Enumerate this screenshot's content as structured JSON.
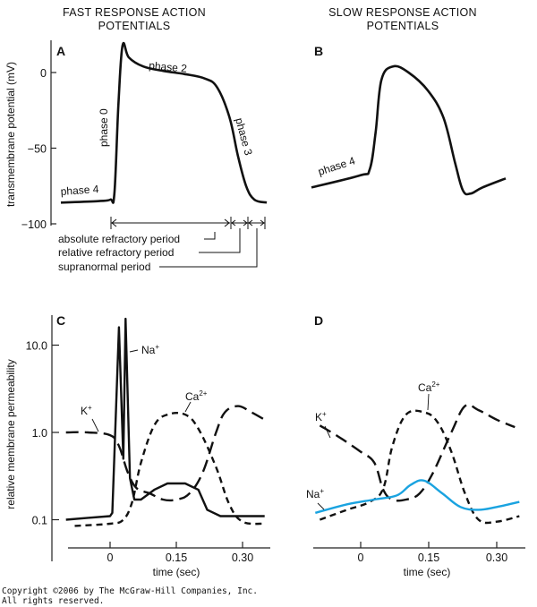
{
  "headers": {
    "fast_line1": "FAST RESPONSE ACTION",
    "fast_line2": "POTENTIALS",
    "slow_line1": "SLOW RESPONSE ACTION",
    "slow_line2": "POTENTIALS"
  },
  "copyright": {
    "line1": "Copyright ©2006 by The McGraw-Hill Companies, Inc.",
    "line2": "All rights reserved."
  },
  "chart_data": [
    {
      "panel": "A",
      "type": "line",
      "title": "Fast response action potential",
      "xlabel": "",
      "ylabel": "transmembrane potential (mV)",
      "ylim": [
        -100,
        20
      ],
      "yticks": [
        0,
        -50,
        -100
      ],
      "ytick_labels": [
        "0",
        "−50",
        "−100"
      ],
      "grid": false,
      "series": [
        {
          "name": "membrane potential",
          "style": "solid",
          "points": [
            [
              0,
              -86
            ],
            [
              0.18,
              -85
            ],
            [
              0.24,
              -84
            ],
            [
              0.26,
              -80
            ],
            [
              0.28,
              -20
            ],
            [
              0.3,
              18
            ],
            [
              0.33,
              10
            ],
            [
              0.4,
              4
            ],
            [
              0.5,
              1
            ],
            [
              0.6,
              -1
            ],
            [
              0.7,
              -4
            ],
            [
              0.76,
              -10
            ],
            [
              0.82,
              -30
            ],
            [
              0.86,
              -55
            ],
            [
              0.9,
              -75
            ],
            [
              0.94,
              -84
            ],
            [
              1.0,
              -86
            ]
          ]
        }
      ],
      "annotations": [
        "phase 0",
        "phase 2",
        "phase 3",
        "phase 4"
      ],
      "periods": {
        "absolute": "absolute refractory period",
        "relative": "relative refractory period",
        "supranormal": "supranormal period"
      }
    },
    {
      "panel": "B",
      "type": "line",
      "title": "Slow response action potential",
      "ylim": [
        -100,
        20
      ],
      "grid": false,
      "series": [
        {
          "name": "membrane potential",
          "style": "solid",
          "points": [
            [
              0,
              -76
            ],
            [
              0.25,
              -68
            ],
            [
              0.3,
              -64
            ],
            [
              0.33,
              -40
            ],
            [
              0.36,
              -5
            ],
            [
              0.42,
              4
            ],
            [
              0.5,
              0
            ],
            [
              0.6,
              -12
            ],
            [
              0.68,
              -30
            ],
            [
              0.74,
              -60
            ],
            [
              0.78,
              -78
            ],
            [
              0.82,
              -80
            ],
            [
              0.88,
              -76
            ],
            [
              1.0,
              -70
            ]
          ]
        }
      ],
      "annotations": [
        "phase 4"
      ]
    },
    {
      "panel": "C",
      "type": "line",
      "xlabel": "time (sec)",
      "ylabel": "relative membrane permeability",
      "yscale": "log",
      "ylim": [
        0.05,
        20
      ],
      "yticks": [
        10.0,
        1.0,
        0.1
      ],
      "ytick_labels": [
        "10.0",
        "1.0",
        "0.1"
      ],
      "xlim": [
        -0.1,
        0.35
      ],
      "xticks": [
        0,
        0.15,
        0.3
      ],
      "xtick_labels": [
        "0",
        "0.15",
        "0.30"
      ],
      "grid": false,
      "series": [
        {
          "name": "Na+",
          "label": "Na",
          "sup": "+",
          "style": "solid",
          "points": [
            [
              -0.1,
              0.1
            ],
            [
              -0.05,
              0.105
            ],
            [
              0,
              0.11
            ],
            [
              0.005,
              0.12
            ],
            [
              0.02,
              16
            ],
            [
              0.03,
              0.5
            ],
            [
              0.035,
              20
            ],
            [
              0.045,
              0.3
            ],
            [
              0.055,
              0.17
            ],
            [
              0.07,
              0.17
            ],
            [
              0.1,
              0.22
            ],
            [
              0.13,
              0.26
            ],
            [
              0.17,
              0.26
            ],
            [
              0.2,
              0.22
            ],
            [
              0.22,
              0.13
            ],
            [
              0.25,
              0.11
            ],
            [
              0.3,
              0.11
            ],
            [
              0.35,
              0.11
            ]
          ]
        },
        {
          "name": "K+",
          "label": "K",
          "sup": "+",
          "style": "long-dash",
          "points": [
            [
              -0.1,
              1.0
            ],
            [
              -0.05,
              1.0
            ],
            [
              0,
              0.93
            ],
            [
              0.02,
              0.7
            ],
            [
              0.04,
              0.35
            ],
            [
              0.06,
              0.23
            ],
            [
              0.09,
              0.2
            ],
            [
              0.12,
              0.17
            ],
            [
              0.15,
              0.17
            ],
            [
              0.18,
              0.2
            ],
            [
              0.21,
              0.35
            ],
            [
              0.24,
              1.0
            ],
            [
              0.26,
              1.7
            ],
            [
              0.29,
              2.0
            ],
            [
              0.32,
              1.7
            ],
            [
              0.35,
              1.4
            ]
          ]
        },
        {
          "name": "Ca2+",
          "label": "Ca",
          "sup": "2+",
          "style": "short-dash",
          "points": [
            [
              -0.08,
              0.085
            ],
            [
              0,
              0.09
            ],
            [
              0.03,
              0.1
            ],
            [
              0.05,
              0.16
            ],
            [
              0.07,
              0.45
            ],
            [
              0.1,
              1.2
            ],
            [
              0.13,
              1.6
            ],
            [
              0.17,
              1.6
            ],
            [
              0.2,
              1.1
            ],
            [
              0.24,
              0.4
            ],
            [
              0.27,
              0.15
            ],
            [
              0.3,
              0.095
            ],
            [
              0.35,
              0.09
            ]
          ]
        }
      ]
    },
    {
      "panel": "D",
      "type": "line",
      "xlabel": "time (sec)",
      "ylabel": "",
      "yscale": "log",
      "ylim": [
        0.05,
        20
      ],
      "xlim": [
        -0.1,
        0.35
      ],
      "xticks": [
        0,
        0.15,
        0.3
      ],
      "xtick_labels": [
        "0",
        "0.15",
        "0.30"
      ],
      "grid": false,
      "series": [
        {
          "name": "K+",
          "label": "K",
          "sup": "+",
          "style": "long-dash",
          "points": [
            [
              -0.09,
              1.2
            ],
            [
              -0.05,
              0.9
            ],
            [
              0,
              0.6
            ],
            [
              0.03,
              0.45
            ],
            [
              0.05,
              0.22
            ],
            [
              0.07,
              0.17
            ],
            [
              0.1,
              0.17
            ],
            [
              0.13,
              0.2
            ],
            [
              0.16,
              0.35
            ],
            [
              0.2,
              1.0
            ],
            [
              0.23,
              2.0
            ],
            [
              0.26,
              1.8
            ],
            [
              0.3,
              1.4
            ],
            [
              0.34,
              1.15
            ]
          ]
        },
        {
          "name": "Ca2+",
          "label": "Ca",
          "sup": "2+",
          "style": "short-dash",
          "points": [
            [
              -0.09,
              0.1
            ],
            [
              -0.03,
              0.13
            ],
            [
              0.02,
              0.16
            ],
            [
              0.05,
              0.23
            ],
            [
              0.07,
              0.7
            ],
            [
              0.1,
              1.6
            ],
            [
              0.14,
              1.7
            ],
            [
              0.17,
              1.3
            ],
            [
              0.2,
              0.6
            ],
            [
              0.23,
              0.2
            ],
            [
              0.26,
              0.1
            ],
            [
              0.3,
              0.095
            ],
            [
              0.35,
              0.11
            ]
          ]
        },
        {
          "name": "Na+",
          "label": "Na",
          "sup": "+",
          "style": "solid",
          "color": "#1aa3e0",
          "points": [
            [
              -0.1,
              0.12
            ],
            [
              -0.03,
              0.15
            ],
            [
              0.03,
              0.17
            ],
            [
              0.08,
              0.19
            ],
            [
              0.11,
              0.25
            ],
            [
              0.14,
              0.28
            ],
            [
              0.18,
              0.2
            ],
            [
              0.22,
              0.14
            ],
            [
              0.26,
              0.13
            ],
            [
              0.3,
              0.14
            ],
            [
              0.35,
              0.16
            ]
          ]
        }
      ]
    }
  ]
}
